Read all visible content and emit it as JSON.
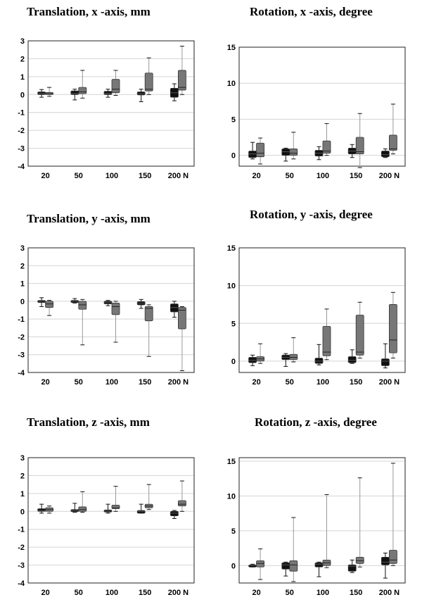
{
  "chart_data": [
    {
      "type": "boxplot",
      "title": "Translation, x -axis, mm",
      "categories": [
        "20",
        "50",
        "100",
        "150",
        "200 N"
      ],
      "ylim": [
        -4,
        3
      ],
      "yticks": [
        "-4",
        "-3",
        "-2",
        "-1",
        "0",
        "1",
        "2",
        "3"
      ],
      "grid": true,
      "series": [
        {
          "color": "#111111",
          "boxes": [
            {
              "min": -0.15,
              "q1": 0.0,
              "median": 0.07,
              "q3": 0.15,
              "max": 0.28
            },
            {
              "min": -0.3,
              "q1": 0.0,
              "median": 0.07,
              "q3": 0.2,
              "max": 0.3
            },
            {
              "min": -0.15,
              "q1": 0.0,
              "median": 0.07,
              "q3": 0.18,
              "max": 0.3
            },
            {
              "min": -0.4,
              "q1": -0.02,
              "median": 0.05,
              "q3": 0.15,
              "max": 0.3
            },
            {
              "min": -0.35,
              "q1": -0.15,
              "median": 0.1,
              "q3": 0.35,
              "max": 0.6
            }
          ]
        },
        {
          "color": "#777777",
          "boxes": [
            {
              "min": -0.1,
              "q1": 0.0,
              "median": 0.05,
              "q3": 0.12,
              "max": 0.4
            },
            {
              "min": -0.2,
              "q1": 0.05,
              "median": 0.15,
              "q3": 0.4,
              "max": 1.35
            },
            {
              "min": -0.05,
              "q1": 0.1,
              "median": 0.3,
              "q3": 0.85,
              "max": 1.35
            },
            {
              "min": 0.0,
              "q1": 0.2,
              "median": 0.3,
              "q3": 1.2,
              "max": 2.05
            },
            {
              "min": 0.0,
              "q1": 0.25,
              "median": 0.4,
              "q3": 1.35,
              "max": 2.7
            }
          ]
        }
      ]
    },
    {
      "type": "boxplot",
      "title": "Rotation, x -axis, degree",
      "categories": [
        "20",
        "50",
        "100",
        "150",
        "200 N"
      ],
      "ylim": [
        -1.5,
        15
      ],
      "yticks": [
        "0",
        "5",
        "10",
        "15"
      ],
      "grid": true,
      "series": [
        {
          "color": "#111111",
          "boxes": [
            {
              "min": -0.5,
              "q1": -0.3,
              "median": 0.2,
              "q3": 0.6,
              "max": 1.8
            },
            {
              "min": -0.8,
              "q1": 0.0,
              "median": 0.5,
              "q3": 0.9,
              "max": 1.0
            },
            {
              "min": -0.6,
              "q1": -0.1,
              "median": 0.3,
              "q3": 0.7,
              "max": 1.2
            },
            {
              "min": -0.3,
              "q1": 0.2,
              "median": 0.6,
              "q3": 1.0,
              "max": 1.5
            },
            {
              "min": -0.3,
              "q1": -0.2,
              "median": 0.1,
              "q3": 0.6,
              "max": 0.9
            }
          ]
        },
        {
          "color": "#777777",
          "boxes": [
            {
              "min": -1.2,
              "q1": -0.2,
              "median": 0.3,
              "q3": 1.7,
              "max": 2.4
            },
            {
              "min": -0.5,
              "q1": 0.0,
              "median": 0.3,
              "q3": 0.9,
              "max": 3.2
            },
            {
              "min": 0.0,
              "q1": 0.3,
              "median": 0.6,
              "q3": 2.0,
              "max": 4.4
            },
            {
              "min": -1.7,
              "q1": 0.2,
              "median": 0.5,
              "q3": 2.5,
              "max": 5.8
            },
            {
              "min": 0.2,
              "q1": 0.7,
              "median": 0.9,
              "q3": 2.8,
              "max": 7.1
            }
          ]
        }
      ]
    },
    {
      "type": "boxplot",
      "title": "Translation, y -axis, mm",
      "categories": [
        "20",
        "50",
        "100",
        "150",
        "200 N"
      ],
      "ylim": [
        -4,
        3
      ],
      "yticks": [
        "-4",
        "-3",
        "-2",
        "-1",
        "0",
        "1",
        "2",
        "3"
      ],
      "grid": true,
      "series": [
        {
          "color": "#111111",
          "boxes": [
            {
              "min": -0.3,
              "q1": -0.05,
              "median": 0.0,
              "q3": 0.05,
              "max": 0.2
            },
            {
              "min": -0.1,
              "q1": -0.05,
              "median": 0.0,
              "q3": 0.05,
              "max": 0.15
            },
            {
              "min": -0.25,
              "q1": -0.15,
              "median": -0.08,
              "q3": 0.0,
              "max": 0.05
            },
            {
              "min": -0.4,
              "q1": -0.2,
              "median": -0.1,
              "q3": -0.02,
              "max": 0.1
            },
            {
              "min": -0.9,
              "q1": -0.6,
              "median": -0.35,
              "q3": -0.15,
              "max": 0.0
            }
          ]
        },
        {
          "color": "#777777",
          "boxes": [
            {
              "min": -0.8,
              "q1": -0.35,
              "median": -0.15,
              "q3": 0.0,
              "max": 0.05
            },
            {
              "min": -2.45,
              "q1": -0.45,
              "median": -0.2,
              "q3": 0.0,
              "max": 0.1
            },
            {
              "min": -2.3,
              "q1": -0.75,
              "median": -0.3,
              "q3": -0.1,
              "max": 0.0
            },
            {
              "min": -3.1,
              "q1": -1.1,
              "median": -0.4,
              "q3": -0.3,
              "max": -0.2
            },
            {
              "min": -3.9,
              "q1": -1.55,
              "median": -0.5,
              "q3": -0.35,
              "max": -0.3
            }
          ]
        }
      ]
    },
    {
      "type": "boxplot",
      "title": "Rotation, y -axis, degree",
      "categories": [
        "20",
        "50",
        "100",
        "150",
        "200 N"
      ],
      "ylim": [
        -1.5,
        15
      ],
      "yticks": [
        "0",
        "5",
        "10",
        "15"
      ],
      "grid": true,
      "series": [
        {
          "color": "#111111",
          "boxes": [
            {
              "min": -0.6,
              "q1": -0.2,
              "median": 0.1,
              "q3": 0.5,
              "max": 0.8
            },
            {
              "min": -0.7,
              "q1": 0.2,
              "median": 0.5,
              "q3": 0.8,
              "max": 1.0
            },
            {
              "min": -0.5,
              "q1": -0.3,
              "median": 0.0,
              "q3": 0.4,
              "max": 2.2
            },
            {
              "min": -0.3,
              "q1": -0.2,
              "median": 0.1,
              "q3": 0.6,
              "max": 1.5
            },
            {
              "min": -0.9,
              "q1": -0.6,
              "median": 0.0,
              "q3": 0.3,
              "max": 2.3
            }
          ]
        },
        {
          "color": "#777777",
          "boxes": [
            {
              "min": -0.3,
              "q1": 0.0,
              "median": 0.3,
              "q3": 0.6,
              "max": 2.3
            },
            {
              "min": -0.1,
              "q1": 0.2,
              "median": 0.5,
              "q3": 0.9,
              "max": 3.1
            },
            {
              "min": 0.2,
              "q1": 0.7,
              "median": 1.2,
              "q3": 4.6,
              "max": 6.9
            },
            {
              "min": 0.4,
              "q1": 0.8,
              "median": 1.2,
              "q3": 6.1,
              "max": 7.8
            },
            {
              "min": 0.4,
              "q1": 1.1,
              "median": 2.8,
              "q3": 7.5,
              "max": 9.1
            }
          ]
        }
      ]
    },
    {
      "type": "boxplot",
      "title": "Translation, z -axis, mm",
      "categories": [
        "20",
        "50",
        "100",
        "150",
        "200 N"
      ],
      "ylim": [
        -4,
        3
      ],
      "yticks": [
        "-4",
        "-3",
        "-2",
        "-1",
        "0",
        "1",
        "2",
        "3"
      ],
      "grid": true,
      "series": [
        {
          "color": "#111111",
          "boxes": [
            {
              "min": -0.1,
              "q1": 0.0,
              "median": 0.05,
              "q3": 0.15,
              "max": 0.4
            },
            {
              "min": -0.05,
              "q1": 0.0,
              "median": 0.03,
              "q3": 0.1,
              "max": 0.45
            },
            {
              "min": -0.1,
              "q1": -0.02,
              "median": 0.02,
              "q3": 0.08,
              "max": 0.4
            },
            {
              "min": -0.1,
              "q1": -0.1,
              "median": 0.0,
              "q3": 0.05,
              "max": 0.4
            },
            {
              "min": -0.4,
              "q1": -0.25,
              "median": -0.1,
              "q3": 0.0,
              "max": 0.05
            }
          ]
        },
        {
          "color": "#777777",
          "boxes": [
            {
              "min": -0.1,
              "q1": 0.0,
              "median": 0.1,
              "q3": 0.2,
              "max": 0.3
            },
            {
              "min": -0.05,
              "q1": 0.0,
              "median": 0.1,
              "q3": 0.25,
              "max": 1.1
            },
            {
              "min": 0.0,
              "q1": 0.15,
              "median": 0.2,
              "q3": 0.35,
              "max": 1.4
            },
            {
              "min": 0.1,
              "q1": 0.2,
              "median": 0.3,
              "q3": 0.4,
              "max": 1.5
            },
            {
              "min": 0.0,
              "q1": 0.3,
              "median": 0.4,
              "q3": 0.6,
              "max": 1.7
            }
          ]
        }
      ]
    },
    {
      "type": "boxplot",
      "title": "Rotation, z -axis, degree",
      "categories": [
        "20",
        "50",
        "100",
        "150",
        "200 N"
      ],
      "ylim": [
        -2.5,
        15.5
      ],
      "yticks": [
        "0",
        "5",
        "10",
        "15"
      ],
      "grid": true,
      "series": [
        {
          "color": "#111111",
          "boxes": [
            {
              "min": -0.2,
              "q1": 0.0,
              "median": 0.05,
              "q3": 0.1,
              "max": 0.2
            },
            {
              "min": -1.5,
              "q1": -0.5,
              "median": 0.1,
              "q3": 0.4,
              "max": 0.5
            },
            {
              "min": -1.6,
              "q1": -0.2,
              "median": 0.2,
              "q3": 0.4,
              "max": 0.5
            },
            {
              "min": -1.0,
              "q1": -0.8,
              "median": -0.1,
              "q3": 0.1,
              "max": 0.8
            },
            {
              "min": -1.8,
              "q1": 0.1,
              "median": 0.5,
              "q3": 1.2,
              "max": 1.8
            }
          ]
        },
        {
          "color": "#777777",
          "boxes": [
            {
              "min": -2.0,
              "q1": -0.2,
              "median": 0.3,
              "q3": 0.7,
              "max": 2.4
            },
            {
              "min": -2.3,
              "q1": -0.8,
              "median": 0.1,
              "q3": 0.7,
              "max": 6.9
            },
            {
              "min": -0.3,
              "q1": 0.0,
              "median": 0.4,
              "q3": 0.8,
              "max": 10.2
            },
            {
              "min": -0.2,
              "q1": 0.3,
              "median": 0.7,
              "q3": 1.2,
              "max": 12.6
            },
            {
              "min": 0.0,
              "q1": 0.3,
              "median": 0.8,
              "q3": 2.2,
              "max": 14.7
            }
          ]
        }
      ]
    }
  ]
}
